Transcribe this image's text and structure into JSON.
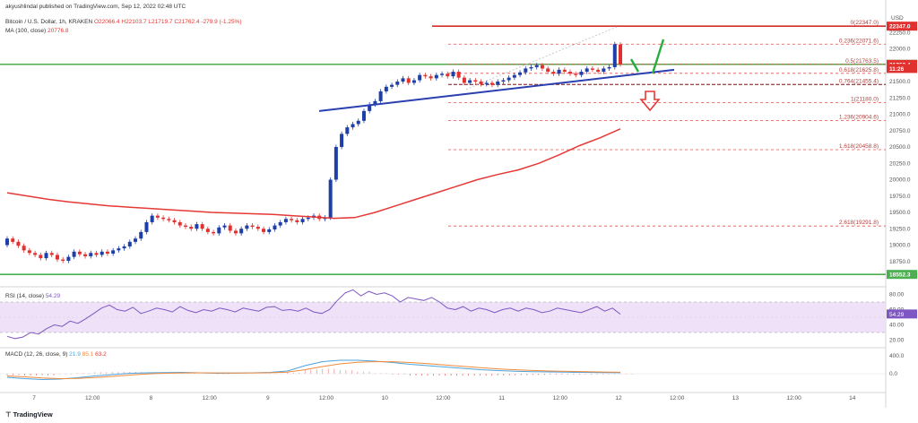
{
  "header": {
    "publisher": "akyushlindal published on TradingView.com, Sep 12, 2022 02:48 UTC",
    "symbol": "Bitcoin / U.S. Dollar, 1h, KRAKEN",
    "open": "O22066.4",
    "high": "H22103.7",
    "low": "L21719.7",
    "close": "C21762.4",
    "change": "-279.9 (-1.25%)",
    "ma_label": "MA (100, close)",
    "ma_value": "20776.8",
    "rsi_label": "RSI (14, close)",
    "rsi_value": "54.29",
    "macd_label": "MACD (12, 26, close, 9)",
    "macd_values": [
      "21.9",
      "85.1",
      "63.2"
    ]
  },
  "brand": "TradingView",
  "colors": {
    "up": "#1e3ea8",
    "down": "#e0312f",
    "ma": "#e53935",
    "trendline": "#2a3fb0",
    "support": "#4caf50",
    "resistance": "#d32f2f",
    "rsi_band": "#ead9f6",
    "macd": "#4aa3df",
    "signal": "#f08a3c"
  },
  "chart_data": {
    "type": "candlestick",
    "x_labels": [
      "7",
      "12:00",
      "8",
      "12:00",
      "9",
      "12:00",
      "10",
      "12:00",
      "11",
      "12:00",
      "12",
      "12:00",
      "13",
      "12:00",
      "14"
    ],
    "price_axis": [
      "22250.0",
      "22000.0",
      "21750.0",
      "21500.0",
      "21250.0",
      "21000.0",
      "20750.0",
      "20500.0",
      "20250.0",
      "20000.0",
      "19750.0",
      "19500.0",
      "19250.0",
      "19000.0",
      "18750.0"
    ],
    "price_axis_values": [
      22250,
      22000,
      21750,
      21500,
      21250,
      21000,
      20750,
      20500,
      20250,
      20000,
      19750,
      19500,
      19250,
      19000,
      18750
    ],
    "ylim": [
      18500,
      22500
    ],
    "axis_tags": [
      {
        "text": "22347.0",
        "value": 22347,
        "color": "#e0312f"
      },
      {
        "text": "21763.8",
        "value": 21763.8,
        "color": "#4caf50"
      },
      {
        "text": "21762.4",
        "value": 21762.4,
        "color": "#e0312f"
      },
      {
        "text": "11:26",
        "value": 21700,
        "color": "#e0312f"
      },
      {
        "text": "18552.3",
        "value": 18552.3,
        "color": "#4caf50"
      }
    ],
    "fib_levels": [
      {
        "label": "0(22347.0)",
        "value": 22347
      },
      {
        "label": "0.236(22071.6)",
        "value": 22071.6
      },
      {
        "label": "0.5(21763.5)",
        "value": 21763.5
      },
      {
        "label": "0.618(21625.8)",
        "value": 21625.8
      },
      {
        "label": "0.764(21455.4)",
        "value": 21455.4
      },
      {
        "label": "1(21180.0)",
        "value": 21180
      },
      {
        "label": "1.236(20904.6)",
        "value": 20904.6
      },
      {
        "label": "1.618(20458.8)",
        "value": 20458.8
      },
      {
        "label": "2.618(19291.8)",
        "value": 19291.8
      }
    ],
    "resistance": 22347,
    "support_upper": 21763.8,
    "support_lower": 18552.3,
    "closes": [
      19100,
      19050,
      18990,
      18920,
      18880,
      18850,
      18800,
      18880,
      18850,
      18780,
      18760,
      18820,
      18900,
      18860,
      18830,
      18880,
      18850,
      18900,
      18870,
      18920,
      18950,
      18980,
      19050,
      19100,
      19200,
      19350,
      19450,
      19420,
      19400,
      19380,
      19350,
      19300,
      19280,
      19250,
      19320,
      19250,
      19200,
      19180,
      19270,
      19300,
      19220,
      19180,
      19250,
      19300,
      19280,
      19250,
      19200,
      19240,
      19300,
      19350,
      19400,
      19380,
      19350,
      19400,
      19420,
      19450,
      19400,
      19420,
      20000,
      20500,
      20700,
      20800,
      20850,
      20900,
      21050,
      21150,
      21200,
      21350,
      21420,
      21450,
      21500,
      21550,
      21480,
      21520,
      21600,
      21580,
      21550,
      21600,
      21620,
      21580,
      21650,
      21560,
      21480,
      21520,
      21500,
      21460,
      21480,
      21450,
      21500,
      21520,
      21560,
      21600,
      21640,
      21700,
      21720,
      21750,
      21700,
      21650,
      21620,
      21680,
      21650,
      21620,
      21600,
      21650,
      21700,
      21680,
      21650,
      21700,
      21720,
      22071,
      21762
    ],
    "opens": [
      19000,
      19100,
      19050,
      18990,
      18920,
      18880,
      18850,
      18800,
      18880,
      18850,
      18780,
      18760,
      18820,
      18900,
      18860,
      18830,
      18880,
      18850,
      18900,
      18870,
      18920,
      18950,
      18980,
      19050,
      19100,
      19200,
      19350,
      19450,
      19420,
      19400,
      19380,
      19350,
      19300,
      19280,
      19250,
      19320,
      19250,
      19200,
      19180,
      19270,
      19300,
      19220,
      19180,
      19250,
      19300,
      19280,
      19250,
      19200,
      19240,
      19300,
      19350,
      19400,
      19380,
      19350,
      19400,
      19420,
      19450,
      19400,
      19420,
      20000,
      20500,
      20700,
      20800,
      20850,
      20900,
      21050,
      21150,
      21200,
      21350,
      21420,
      21450,
      21500,
      21550,
      21480,
      21520,
      21600,
      21580,
      21550,
      21600,
      21620,
      21580,
      21650,
      21560,
      21480,
      21520,
      21500,
      21460,
      21480,
      21450,
      21500,
      21520,
      21560,
      21600,
      21640,
      21700,
      21720,
      21750,
      21700,
      21650,
      21620,
      21680,
      21650,
      21620,
      21600,
      21650,
      21700,
      21680,
      21650,
      21700,
      21720,
      22066
    ],
    "ma_100": [
      19800,
      19750,
      19700,
      19660,
      19630,
      19600,
      19580,
      19560,
      19540,
      19520,
      19500,
      19490,
      19480,
      19470,
      19450,
      19430,
      19410,
      19420,
      19500,
      19600,
      19700,
      19800,
      19900,
      20000,
      20080,
      20150,
      20250,
      20380,
      20520,
      20640,
      20777
    ],
    "rsi_axis": [
      "80.00",
      "60.00",
      "40.00",
      "20.00"
    ],
    "rsi_axis_values": [
      80,
      60,
      40,
      20
    ],
    "rsi_band": [
      30,
      70
    ],
    "rsi": [
      25,
      22,
      24,
      30,
      28,
      35,
      40,
      38,
      45,
      42,
      48,
      55,
      62,
      66,
      60,
      58,
      63,
      55,
      58,
      62,
      60,
      57,
      64,
      59,
      56,
      60,
      58,
      62,
      60,
      57,
      62,
      60,
      58,
      63,
      64,
      59,
      60,
      58,
      62,
      57,
      55,
      60,
      72,
      82,
      86,
      78,
      84,
      80,
      82,
      78,
      70,
      76,
      74,
      72,
      76,
      70,
      62,
      60,
      64,
      58,
      62,
      60,
      56,
      60,
      62,
      58,
      62,
      60,
      56,
      58,
      62,
      60,
      58,
      56,
      60,
      64,
      58,
      62,
      54
    ],
    "macd_axis": [
      "400.0",
      "0.0"
    ],
    "macd_axis_values": [
      400,
      0
    ],
    "macd": [
      -80,
      -110,
      -130,
      -120,
      -90,
      -50,
      -20,
      10,
      20,
      25,
      30,
      20,
      10,
      15,
      20,
      30,
      60,
      180,
      270,
      300,
      300,
      280,
      250,
      210,
      180,
      150,
      120,
      90,
      70,
      55,
      45,
      40,
      35,
      30,
      25,
      22
    ],
    "signal": [
      -50,
      -70,
      -95,
      -110,
      -105,
      -85,
      -60,
      -30,
      -5,
      10,
      18,
      20,
      18,
      16,
      18,
      22,
      35,
      90,
      160,
      220,
      255,
      270,
      268,
      250,
      225,
      195,
      165,
      135,
      108,
      88,
      72,
      60,
      52,
      45,
      38,
      32
    ]
  }
}
